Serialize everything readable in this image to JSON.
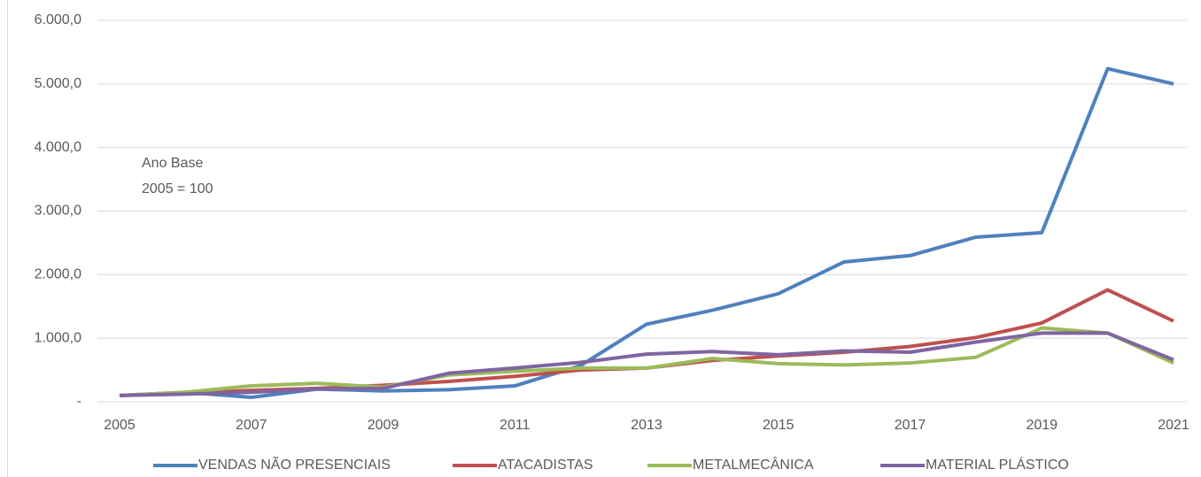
{
  "chart_data": {
    "type": "line",
    "x": [
      2005,
      2006,
      2007,
      2008,
      2009,
      2010,
      2011,
      2012,
      2013,
      2014,
      2015,
      2016,
      2017,
      2018,
      2019,
      2020,
      2021
    ],
    "xlim": [
      2005,
      2021
    ],
    "xticks": [
      2005,
      2007,
      2009,
      2011,
      2013,
      2015,
      2017,
      2019,
      2021
    ],
    "ylim": [
      0,
      6000
    ],
    "yticks": [
      {
        "value": 0,
        "label": "-"
      },
      {
        "value": 1000,
        "label": "1.000,0"
      },
      {
        "value": 2000,
        "label": "2.000,0"
      },
      {
        "value": 3000,
        "label": "3.000,0"
      },
      {
        "value": 4000,
        "label": "4.000,0"
      },
      {
        "value": 5000,
        "label": "5.000,0"
      },
      {
        "value": 6000,
        "label": "6.000,0"
      }
    ],
    "grid": true,
    "legend": "bottom",
    "annotations": [
      "Ano Base",
      "2005 = 100"
    ],
    "series": [
      {
        "name": "VENDAS NÃO PRESENCIAIS",
        "color": "#4f81bd",
        "values": [
          100,
          150,
          70,
          200,
          170,
          190,
          250,
          570,
          1220,
          1440,
          1700,
          2200,
          2300,
          2590,
          2660,
          5240,
          5000
        ]
      },
      {
        "name": "ATACADISTAS",
        "color": "#c0504d",
        "values": [
          100,
          130,
          180,
          210,
          260,
          320,
          400,
          500,
          530,
          650,
          720,
          780,
          870,
          1010,
          1240,
          1760,
          1270
        ]
      },
      {
        "name": "METALMECÂNICA",
        "color": "#9bbb59",
        "values": [
          100,
          150,
          250,
          290,
          230,
          420,
          480,
          530,
          530,
          680,
          600,
          580,
          610,
          700,
          1160,
          1080,
          610
        ]
      },
      {
        "name": "MATERIAL PLÁSTICO",
        "color": "#8064a2",
        "values": [
          100,
          120,
          150,
          200,
          210,
          450,
          530,
          620,
          750,
          790,
          740,
          800,
          780,
          940,
          1080,
          1080,
          660
        ]
      }
    ]
  }
}
